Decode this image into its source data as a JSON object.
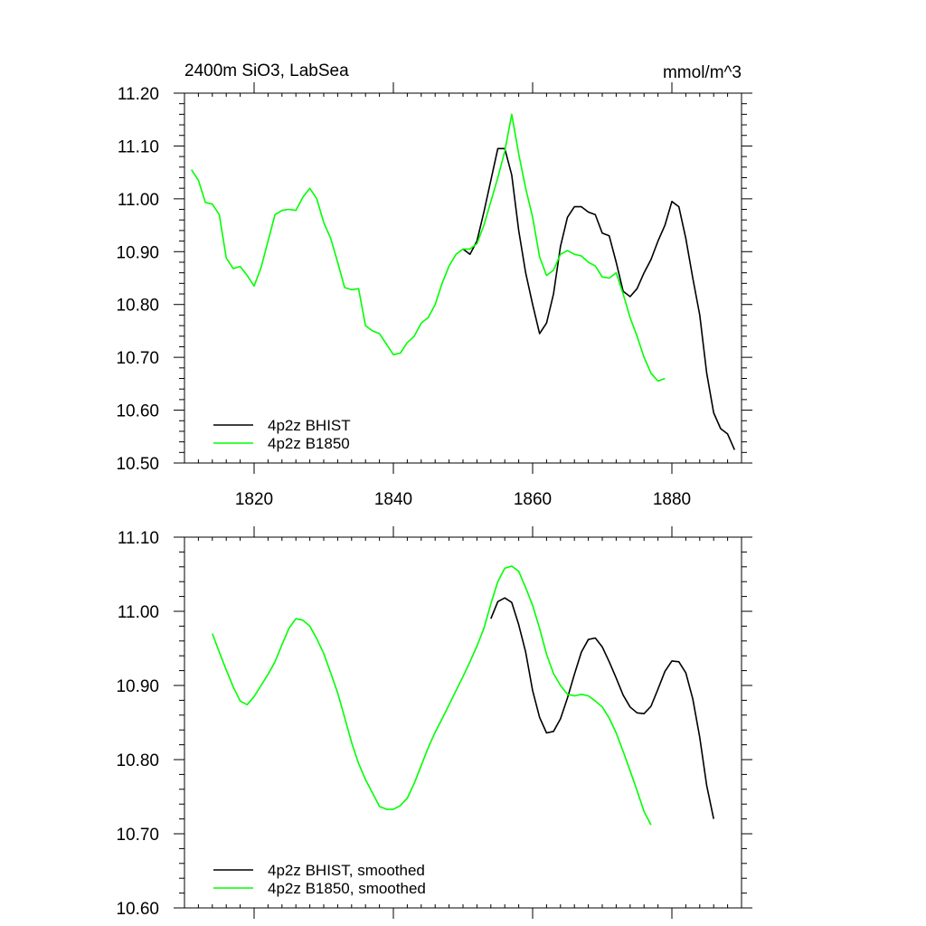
{
  "chart_data": [
    {
      "type": "line",
      "title": "2400m SiO3, LabSea",
      "units": "mmol/m^3",
      "xlim": [
        1810,
        1890
      ],
      "ylim": [
        10.5,
        11.2
      ],
      "xticks": [
        1820,
        1840,
        1860,
        1880
      ],
      "xtick_labels": [
        "1820",
        "1840",
        "1860",
        "1880"
      ],
      "yticks": [
        10.5,
        10.6,
        10.7,
        10.8,
        10.9,
        11.0,
        11.1,
        11.2
      ],
      "ytick_labels": [
        "10.50",
        "10.60",
        "10.70",
        "10.80",
        "10.90",
        "11.00",
        "11.10",
        "11.20"
      ],
      "legend_position": "bottom-left",
      "series": [
        {
          "name": "4p2z BHIST",
          "color": "#000000",
          "x": [
            1850,
            1851,
            1852,
            1853,
            1854,
            1855,
            1856,
            1857,
            1858,
            1859,
            1860,
            1861,
            1862,
            1863,
            1864,
            1865,
            1866,
            1867,
            1868,
            1869,
            1870,
            1871,
            1872,
            1873,
            1874,
            1875,
            1876,
            1877,
            1878,
            1879,
            1880,
            1881,
            1882,
            1883,
            1884,
            1885,
            1886,
            1887,
            1888,
            1889
          ],
          "values": [
            10.905,
            10.895,
            10.92,
            10.975,
            11.035,
            11.095,
            11.095,
            11.045,
            10.94,
            10.86,
            10.8,
            10.745,
            10.765,
            10.82,
            10.91,
            10.965,
            10.985,
            10.985,
            10.975,
            10.97,
            10.935,
            10.93,
            10.88,
            10.825,
            10.815,
            10.83,
            10.86,
            10.885,
            10.92,
            10.95,
            10.995,
            10.985,
            10.925,
            10.85,
            10.78,
            10.67,
            10.595,
            10.565,
            10.555,
            10.525
          ]
        },
        {
          "name": "4p2z B1850",
          "color": "#00ff00",
          "x": [
            1811,
            1812,
            1813,
            1814,
            1815,
            1816,
            1817,
            1818,
            1819,
            1820,
            1821,
            1822,
            1823,
            1824,
            1825,
            1826,
            1827,
            1828,
            1829,
            1830,
            1831,
            1832,
            1833,
            1834,
            1835,
            1836,
            1837,
            1838,
            1839,
            1840,
            1841,
            1842,
            1843,
            1844,
            1845,
            1846,
            1847,
            1848,
            1849,
            1850,
            1851,
            1852,
            1853,
            1854,
            1855,
            1856,
            1857,
            1858,
            1859,
            1860,
            1861,
            1862,
            1863,
            1864,
            1865,
            1866,
            1867,
            1868,
            1869,
            1870,
            1871,
            1872,
            1873,
            1874,
            1875,
            1876,
            1877,
            1878,
            1879
          ],
          "values": [
            11.055,
            11.035,
            10.993,
            10.99,
            10.97,
            10.888,
            10.868,
            10.872,
            10.855,
            10.835,
            10.87,
            10.92,
            10.97,
            10.978,
            10.98,
            10.978,
            11.003,
            11.02,
            11.0,
            10.955,
            10.925,
            10.88,
            10.832,
            10.828,
            10.83,
            10.76,
            10.75,
            10.745,
            10.725,
            10.705,
            10.708,
            10.728,
            10.74,
            10.765,
            10.775,
            10.8,
            10.84,
            10.873,
            10.895,
            10.905,
            10.905,
            10.915,
            10.95,
            10.995,
            11.04,
            11.09,
            11.16,
            11.085,
            11.02,
            10.965,
            10.89,
            10.855,
            10.865,
            10.895,
            10.902,
            10.895,
            10.892,
            10.88,
            10.873,
            10.852,
            10.85,
            10.86,
            10.82,
            10.775,
            10.74,
            10.7,
            10.67,
            10.655,
            10.66
          ]
        }
      ]
    },
    {
      "type": "line",
      "xlim": [
        1810,
        1890
      ],
      "ylim": [
        10.6,
        11.1
      ],
      "xticks": [
        1820,
        1840,
        1860,
        1880
      ],
      "yticks": [
        10.6,
        10.7,
        10.8,
        10.9,
        11.0,
        11.1
      ],
      "ytick_labels": [
        "10.60",
        "10.70",
        "10.80",
        "10.90",
        "11.00",
        "11.10"
      ],
      "legend_position": "bottom-left",
      "series": [
        {
          "name": "4p2z BHIST, smoothed",
          "color": "#000000",
          "x": [
            1854,
            1855,
            1856,
            1857,
            1858,
            1859,
            1860,
            1861,
            1862,
            1863,
            1864,
            1865,
            1866,
            1867,
            1868,
            1869,
            1870,
            1871,
            1872,
            1873,
            1874,
            1875,
            1876,
            1877,
            1878,
            1879,
            1880,
            1881,
            1882,
            1883,
            1884,
            1885,
            1886
          ],
          "values": [
            10.99,
            11.013,
            11.018,
            11.012,
            10.982,
            10.945,
            10.893,
            10.857,
            10.836,
            10.838,
            10.855,
            10.883,
            10.915,
            10.945,
            10.962,
            10.964,
            10.952,
            10.932,
            10.91,
            10.887,
            10.871,
            10.863,
            10.862,
            10.872,
            10.895,
            10.919,
            10.933,
            10.932,
            10.917,
            10.882,
            10.83,
            10.765,
            10.72
          ]
        },
        {
          "name": "4p2z B1850, smoothed",
          "color": "#00ff00",
          "x": [
            1814,
            1815,
            1816,
            1817,
            1818,
            1819,
            1820,
            1821,
            1822,
            1823,
            1824,
            1825,
            1826,
            1827,
            1828,
            1829,
            1830,
            1831,
            1832,
            1833,
            1834,
            1835,
            1836,
            1837,
            1838,
            1839,
            1840,
            1841,
            1842,
            1843,
            1844,
            1845,
            1846,
            1847,
            1848,
            1849,
            1850,
            1851,
            1852,
            1853,
            1854,
            1855,
            1856,
            1857,
            1858,
            1859,
            1860,
            1861,
            1862,
            1863,
            1864,
            1865,
            1866,
            1867,
            1868,
            1869,
            1870,
            1871,
            1872,
            1873,
            1874,
            1875,
            1876,
            1877
          ],
          "values": [
            10.97,
            10.945,
            10.921,
            10.898,
            10.879,
            10.874,
            10.885,
            10.9,
            10.915,
            10.932,
            10.955,
            10.977,
            10.99,
            10.988,
            10.98,
            10.963,
            10.943,
            10.917,
            10.89,
            10.857,
            10.823,
            10.795,
            10.773,
            10.755,
            10.737,
            10.733,
            10.733,
            10.738,
            10.748,
            10.768,
            10.792,
            10.816,
            10.837,
            10.855,
            10.874,
            10.893,
            10.912,
            10.932,
            10.953,
            10.977,
            11.01,
            11.04,
            11.058,
            11.061,
            11.054,
            11.032,
            11.008,
            10.977,
            10.942,
            10.916,
            10.9,
            10.888,
            10.886,
            10.888,
            10.886,
            10.879,
            10.871,
            10.856,
            10.836,
            10.811,
            10.785,
            10.758,
            10.73,
            10.712
          ]
        }
      ]
    }
  ]
}
